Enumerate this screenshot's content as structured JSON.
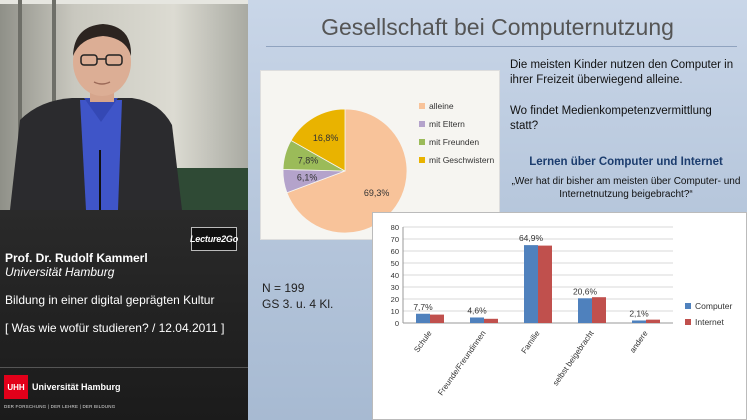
{
  "speaker": {
    "name": "Prof. Dr. Rudolf Kammerl",
    "university": "Universität Hamburg",
    "course": "Bildung in einer digital geprägten Kultur",
    "lecture": "[ Was wie wofür studieren? / 12.04.2011 ]"
  },
  "branding": {
    "lecture2go_logo": "Lecture2Go",
    "uhh_logo_text": "UHH",
    "uhh_name": "Universität Hamburg",
    "uhh_motto": "DER FORSCHUNG | DER LEHRE | DER BILDUNG"
  },
  "slide": {
    "title": "Gesellschaft bei Computernutzung",
    "text_intro": "Die meisten Kinder nutzen den Computer in ihrer Freizeit überwiegend alleine.",
    "text_question": "Wo findet Medienkompetenzvermittlung statt?",
    "subheading": "Lernen über Computer und Internet",
    "quote": "„Wer hat dir bisher am meisten über Computer- und Internetnutzung beigebracht?“",
    "sample_n": "N = 199",
    "sample_group": "GS 3. u. 4 Kl."
  },
  "colors": {
    "alleine": "#f8c39a",
    "mit_eltern": "#b4a3cb",
    "mit_freunden": "#9bbb59",
    "mit_geschwistern": "#e9b300",
    "computer": "#4f81bd",
    "internet": "#c0504d"
  },
  "chart_data": [
    {
      "type": "pie",
      "categories": [
        "alleine",
        "mit Eltern",
        "mit Freunden",
        "mit Geschwistern"
      ],
      "values": [
        69.3,
        6.1,
        7.8,
        16.8
      ],
      "labels": [
        "69,3%",
        "6,1%",
        "7,8%",
        "16,8%"
      ],
      "title": "",
      "legend": "right"
    },
    {
      "type": "bar",
      "categories": [
        "Schule",
        "Freunde/Freundinnen",
        "Familie",
        "selbst beigebracht",
        "andere"
      ],
      "series": [
        {
          "name": "Computer",
          "values": [
            7.7,
            4.6,
            64.9,
            20.6,
            2.1
          ]
        },
        {
          "name": "Internet",
          "values": [
            7.0,
            3.5,
            64.5,
            21.5,
            2.8
          ]
        }
      ],
      "data_labels": [
        "7,7%",
        "4,6%",
        "64,9%",
        "20,6%",
        "2,1%"
      ],
      "ylim": [
        0,
        80
      ],
      "yticks": [
        0,
        10,
        20,
        30,
        40,
        50,
        60,
        70,
        80
      ],
      "title": "",
      "xlabel": "",
      "ylabel": "",
      "grid": true,
      "legend": "right"
    }
  ]
}
